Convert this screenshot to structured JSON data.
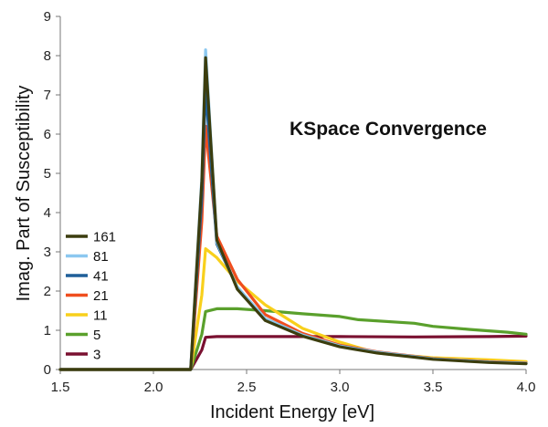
{
  "chart_data": {
    "type": "line",
    "title": "KSpace Convergence",
    "xlabel": "Incident Energy [eV]",
    "ylabel": "Imag. Part of Susceptibility",
    "xlim": [
      1.5,
      4.0
    ],
    "ylim": [
      0,
      9
    ],
    "xticks": [
      "1.5",
      "2.0",
      "2.5",
      "3.0",
      "3.5",
      "4.0"
    ],
    "yticks": [
      "0",
      "1",
      "2",
      "3",
      "4",
      "5",
      "6",
      "7",
      "8",
      "9"
    ],
    "grid": false,
    "legend_position": "left-middle",
    "series": [
      {
        "name": "161",
        "color": "#3b3d0e",
        "x": [
          1.5,
          2.2,
          2.26,
          2.28,
          2.34,
          2.45,
          2.6,
          2.8,
          3.0,
          3.2,
          3.5,
          3.8,
          4.0
        ],
        "y": [
          0,
          0,
          4.8,
          7.95,
          3.3,
          2.05,
          1.25,
          0.85,
          0.58,
          0.42,
          0.26,
          0.18,
          0.15
        ]
      },
      {
        "name": "81",
        "color": "#8cc8f0",
        "x": [
          1.5,
          2.2,
          2.26,
          2.28,
          2.34,
          2.45,
          2.6,
          2.8,
          3.0,
          3.2,
          3.5,
          3.8,
          4.0
        ],
        "y": [
          0,
          0,
          4.9,
          8.15,
          3.25,
          2.1,
          1.3,
          0.88,
          0.6,
          0.44,
          0.27,
          0.19,
          0.16
        ]
      },
      {
        "name": "41",
        "color": "#1f5f99",
        "x": [
          1.5,
          2.2,
          2.26,
          2.28,
          2.34,
          2.45,
          2.6,
          2.8,
          3.0,
          3.2,
          3.5,
          3.8,
          4.0
        ],
        "y": [
          0,
          0,
          4.4,
          7.2,
          3.2,
          2.1,
          1.28,
          0.87,
          0.6,
          0.44,
          0.27,
          0.19,
          0.16
        ]
      },
      {
        "name": "21",
        "color": "#f04e1f",
        "x": [
          1.5,
          2.2,
          2.26,
          2.28,
          2.34,
          2.45,
          2.6,
          2.8,
          3.0,
          3.2,
          3.5,
          3.8,
          4.0
        ],
        "y": [
          0,
          0,
          3.8,
          6.2,
          3.4,
          2.3,
          1.4,
          0.92,
          0.62,
          0.45,
          0.28,
          0.2,
          0.17
        ]
      },
      {
        "name": "11",
        "color": "#f8d01c",
        "x": [
          1.5,
          2.2,
          2.26,
          2.28,
          2.34,
          2.45,
          2.6,
          2.8,
          3.0,
          3.2,
          3.5,
          3.8,
          4.0
        ],
        "y": [
          0,
          0,
          1.9,
          3.08,
          2.85,
          2.25,
          1.65,
          1.05,
          0.7,
          0.42,
          0.3,
          0.25,
          0.2
        ]
      },
      {
        "name": "5",
        "color": "#5aa02c",
        "x": [
          1.5,
          2.2,
          2.26,
          2.28,
          2.34,
          2.45,
          2.6,
          2.8,
          3.0,
          3.1,
          3.4,
          3.5,
          3.7,
          3.9,
          4.0
        ],
        "y": [
          0,
          0,
          0.9,
          1.48,
          1.55,
          1.55,
          1.5,
          1.42,
          1.35,
          1.27,
          1.18,
          1.1,
          1.02,
          0.95,
          0.9
        ]
      },
      {
        "name": "3",
        "color": "#7a1030",
        "x": [
          1.5,
          2.2,
          2.26,
          2.28,
          2.34,
          2.6,
          3.0,
          3.4,
          3.8,
          4.0
        ],
        "y": [
          0,
          0,
          0.5,
          0.82,
          0.84,
          0.84,
          0.84,
          0.83,
          0.84,
          0.85
        ]
      }
    ]
  }
}
